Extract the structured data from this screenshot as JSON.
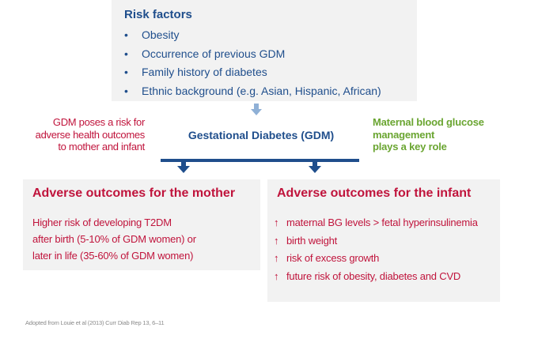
{
  "risk_factors": {
    "title": "Risk factors",
    "items": [
      "Obesity",
      "Occurrence of previous GDM",
      "Family history of diabetes",
      "Ethnic background (e.g. Asian, Hispanic, African)"
    ]
  },
  "center": {
    "title": "Gestational Diabetes (GDM)"
  },
  "left_note": {
    "line1": "GDM poses a risk for",
    "line2": "adverse health outcomes",
    "line3": "to mother and infant"
  },
  "right_note": {
    "line1": "Maternal blood glucose",
    "line2": "management",
    "line3": "plays a key role"
  },
  "mother": {
    "title": "Adverse outcomes for the mother",
    "lines": [
      "Higher risk of developing T2DM",
      "after birth (5-10% of GDM women) or",
      "later in life (35-60% of GDM women)"
    ]
  },
  "infant": {
    "title": "Adverse outcomes for the infant",
    "up_symbol": "↑",
    "items": [
      "maternal BG levels > fetal hyperinsulinemia",
      "birth weight",
      "risk of excess growth",
      "future risk of obesity, diabetes and CVD"
    ]
  },
  "citation": "Adopted from Louie et al (2013) Curr Diab Rep 13, 6–11",
  "colors": {
    "navy": "#1f4e8c",
    "crimson": "#c0143c",
    "green": "#6aa531",
    "panel": "#f2f2f2",
    "light_arrow": "#8fb0d6"
  }
}
